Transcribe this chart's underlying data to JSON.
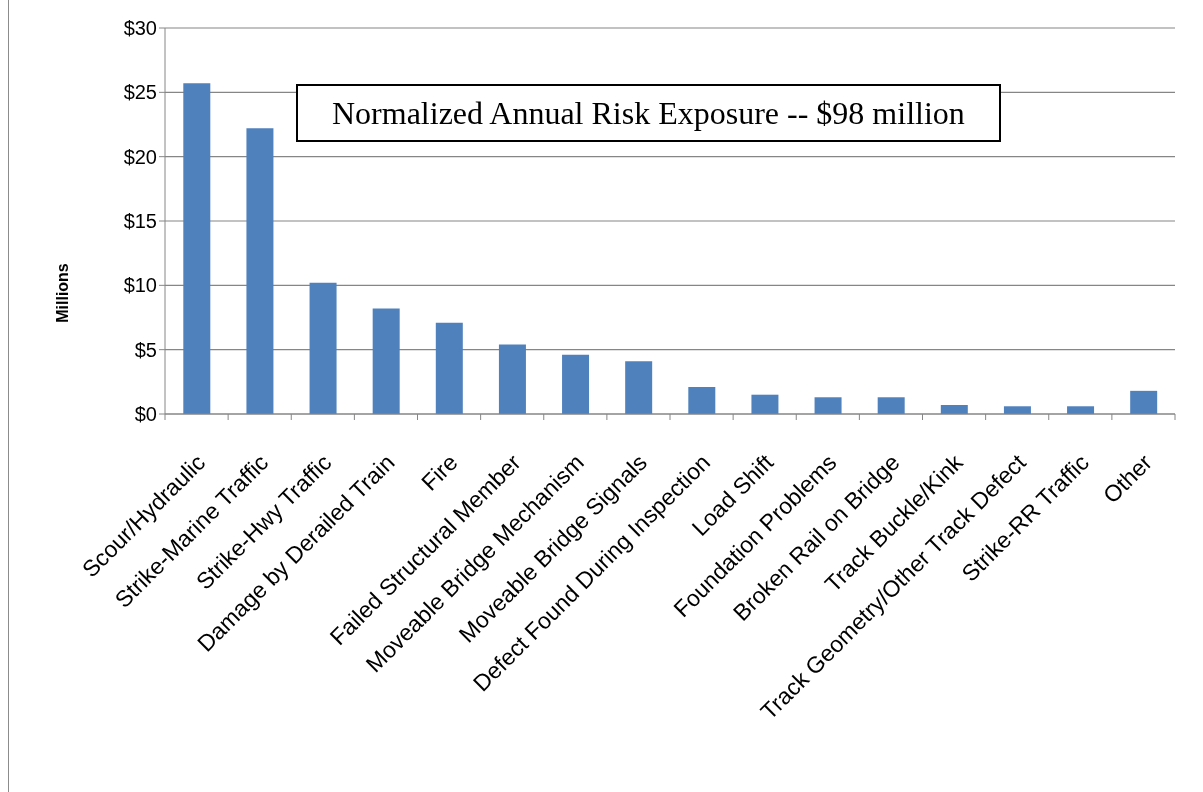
{
  "chart_data": {
    "type": "bar",
    "ylabel": "Millions",
    "annotations": [
      "Normalized Annual Risk Exposure -- $98 million"
    ],
    "categories": [
      "Scour/Hydraulic",
      "Strike-Marine Traffic",
      "Strike-Hwy Traffic",
      "Damage by Derailed Train",
      "Fire",
      "Failed Structural Member",
      "Moveable Bridge Mechanism",
      "Moveable Bridge Signals",
      "Defect Found During Inspection",
      "Load Shift",
      "Foundation Problems",
      "Broken Rail on Bridge",
      "Track Buckle/Kink",
      "Track Geometry/Other Track Defect",
      "Strike-RR Traffic",
      "Other"
    ],
    "values": [
      25.7,
      22.2,
      10.2,
      8.2,
      7.1,
      5.4,
      4.6,
      4.1,
      2.1,
      1.5,
      1.3,
      1.3,
      0.7,
      0.6,
      0.6,
      1.8
    ],
    "color": "#4f81bd",
    "ylim": [
      0,
      30
    ],
    "yticks": [
      {
        "value": 0,
        "label": "$0"
      },
      {
        "value": 5,
        "label": "$5"
      },
      {
        "value": 10,
        "label": "$10"
      },
      {
        "value": 15,
        "label": "$15"
      },
      {
        "value": 20,
        "label": "$20"
      },
      {
        "value": 25,
        "label": "$25"
      },
      {
        "value": 30,
        "label": "$30"
      }
    ],
    "grid": "y"
  }
}
